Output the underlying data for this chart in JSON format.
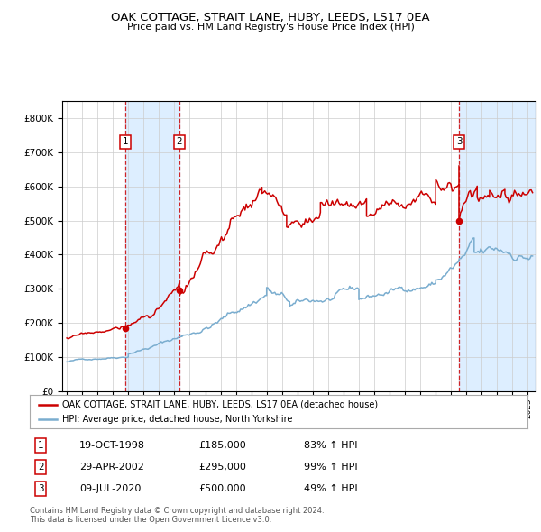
{
  "title": "OAK COTTAGE, STRAIT LANE, HUBY, LEEDS, LS17 0EA",
  "subtitle": "Price paid vs. HM Land Registry's House Price Index (HPI)",
  "legend_line1": "OAK COTTAGE, STRAIT LANE, HUBY, LEEDS, LS17 0EA (detached house)",
  "legend_line2": "HPI: Average price, detached house, North Yorkshire",
  "transactions": [
    {
      "num": 1,
      "date": "19-OCT-1998",
      "price": 185000,
      "hpi_pct": "83%",
      "year": 1998.79
    },
    {
      "num": 2,
      "date": "29-APR-2002",
      "price": 295000,
      "hpi_pct": "99%",
      "year": 2002.33
    },
    {
      "num": 3,
      "date": "09-JUL-2020",
      "price": 500000,
      "hpi_pct": "49%",
      "year": 2020.52
    }
  ],
  "footer1": "Contains HM Land Registry data © Crown copyright and database right 2024.",
  "footer2": "This data is licensed under the Open Government Licence v3.0.",
  "red_color": "#cc0000",
  "blue_color": "#7aadcf",
  "bg_shading": "#ddeeff",
  "grid_color": "#cccccc",
  "ylim": [
    0,
    850000
  ],
  "yticks": [
    0,
    100000,
    200000,
    300000,
    400000,
    500000,
    600000,
    700000,
    800000
  ],
  "xlim_start": 1994.7,
  "xlim_end": 2025.5
}
